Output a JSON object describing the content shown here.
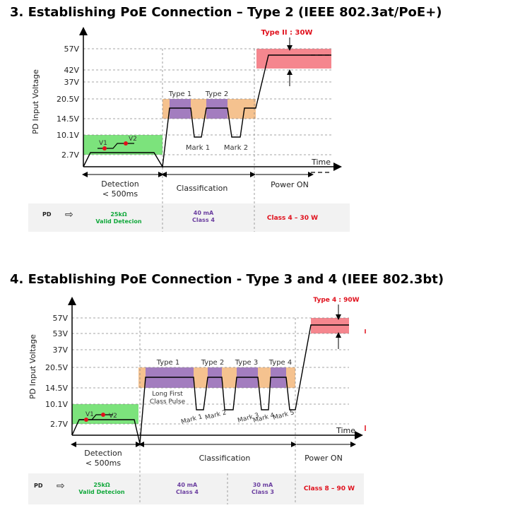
{
  "sections": [
    {
      "title": "3.  Establishing PoE Connection – Type 2 (IEEE 802.3at/PoE+)",
      "y_axis_label": "PD Input Voltage",
      "voltages": [
        "57V",
        "42V",
        "37V",
        "20.5V",
        "14.5V",
        "10.1V",
        "2.7V"
      ],
      "time_label": "Time",
      "type_box_label": "Type II : 30W",
      "v1": "V1",
      "v2": "V2",
      "types": [
        "Type 1",
        "Type 2"
      ],
      "marks": [
        "Mark 1",
        "Mark 2"
      ],
      "phases": {
        "detection": "Detection",
        "detection_time": "< 500ms",
        "classification": "Classification",
        "power_on": "Power ON"
      },
      "pd": "PD",
      "detection_resistance": "25kΩ",
      "valid_detection": "Valid Detecion",
      "class_current": "40 mA",
      "class_label": "Class 4",
      "power_class": "Class 4 – 30 W",
      "colors": {
        "green": "#7ce37c",
        "purple": "#a37dbf",
        "orange": "#f5c28f",
        "red": "#f5868e",
        "green_text": "#12a83c",
        "purple_text": "#6b3fa0",
        "red_text": "#e0101c"
      }
    },
    {
      "title": "4. Establishing PoE Connection  -  Type 3 and 4 (IEEE 802.3bt)",
      "y_axis_label": "PD Input Voltage",
      "voltages": [
        "57V",
        "53V",
        "37V",
        "20.5V",
        "14.5V",
        "10.1V",
        "2.7V"
      ],
      "time_label": "Time",
      "type_box_label": "Type 4 : 90W",
      "v1": "V1",
      "v2": "V2",
      "types": [
        "Type 1",
        "Type 2",
        "Type 3",
        "Type 4"
      ],
      "long_pulse": [
        "Long First",
        "Class Pulse"
      ],
      "marks": [
        "Mark 1",
        "Mark 2",
        "Mark 3",
        "Mark 4",
        "Mark 5"
      ],
      "phases": {
        "detection": "Detection",
        "detection_time": "< 500ms",
        "classification": "Classification",
        "power_on": "Power ON"
      },
      "pd": "PD",
      "detection_resistance": "25kΩ",
      "valid_detection": "Valid Detecion",
      "class_current_a": "40 mA",
      "class_label_a": "Class 4",
      "class_current_b": "30 mA",
      "class_label_b": "Class 3",
      "power_class": "Class 8 – 90 W",
      "colors": {
        "green": "#7ce37c",
        "purple": "#a37dbf",
        "orange": "#f5c28f",
        "red": "#f5868e",
        "green_text": "#12a83c",
        "purple_text": "#6b3fa0",
        "red_text": "#e0101c"
      }
    }
  ]
}
